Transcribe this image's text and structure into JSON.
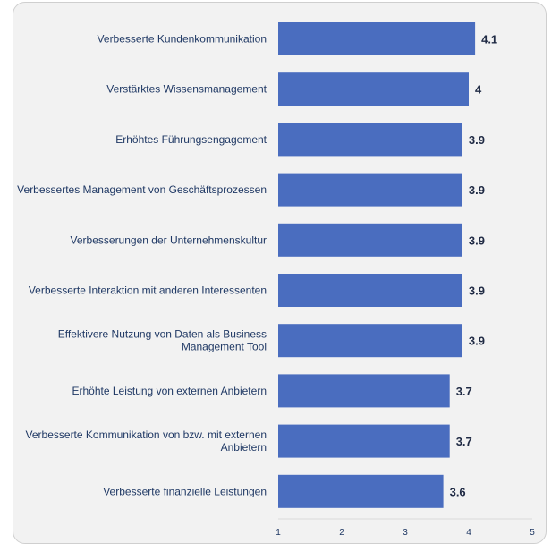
{
  "chart_data": {
    "type": "bar",
    "orientation": "horizontal",
    "title": "",
    "xlabel": "",
    "ylabel": "",
    "xlim": [
      1,
      5
    ],
    "ticks": [
      1,
      2,
      3,
      4,
      5
    ],
    "grid": false,
    "bar_color": "#4a6dbf",
    "categories": [
      [
        "Verbesserte Kundenkommunikation"
      ],
      [
        "Verstärktes Wissensmanagement"
      ],
      [
        "Erhöhtes Führungsengagement"
      ],
      [
        "Verbessertes Management von Geschäftsprozessen"
      ],
      [
        "Verbesserungen der Unternehmenskultur"
      ],
      [
        "Verbesserte Interaktion mit anderen Interessenten"
      ],
      [
        "Effektivere Nutzung von Daten als Business",
        "Management Tool"
      ],
      [
        "Erhöhte Leistung von externen Anbietern"
      ],
      [
        "Verbesserte Kommunikation von bzw. mit externen",
        "Anbietern"
      ],
      [
        "Verbesserte finanzielle Leistungen"
      ]
    ],
    "values": [
      4.1,
      4,
      3.9,
      3.9,
      3.9,
      3.9,
      3.9,
      3.7,
      3.7,
      3.6
    ],
    "value_labels": [
      "4.1",
      "4",
      "3.9",
      "3.9",
      "3.9",
      "3.9",
      "3.9",
      "3.7",
      "3.7",
      "3.6"
    ]
  }
}
